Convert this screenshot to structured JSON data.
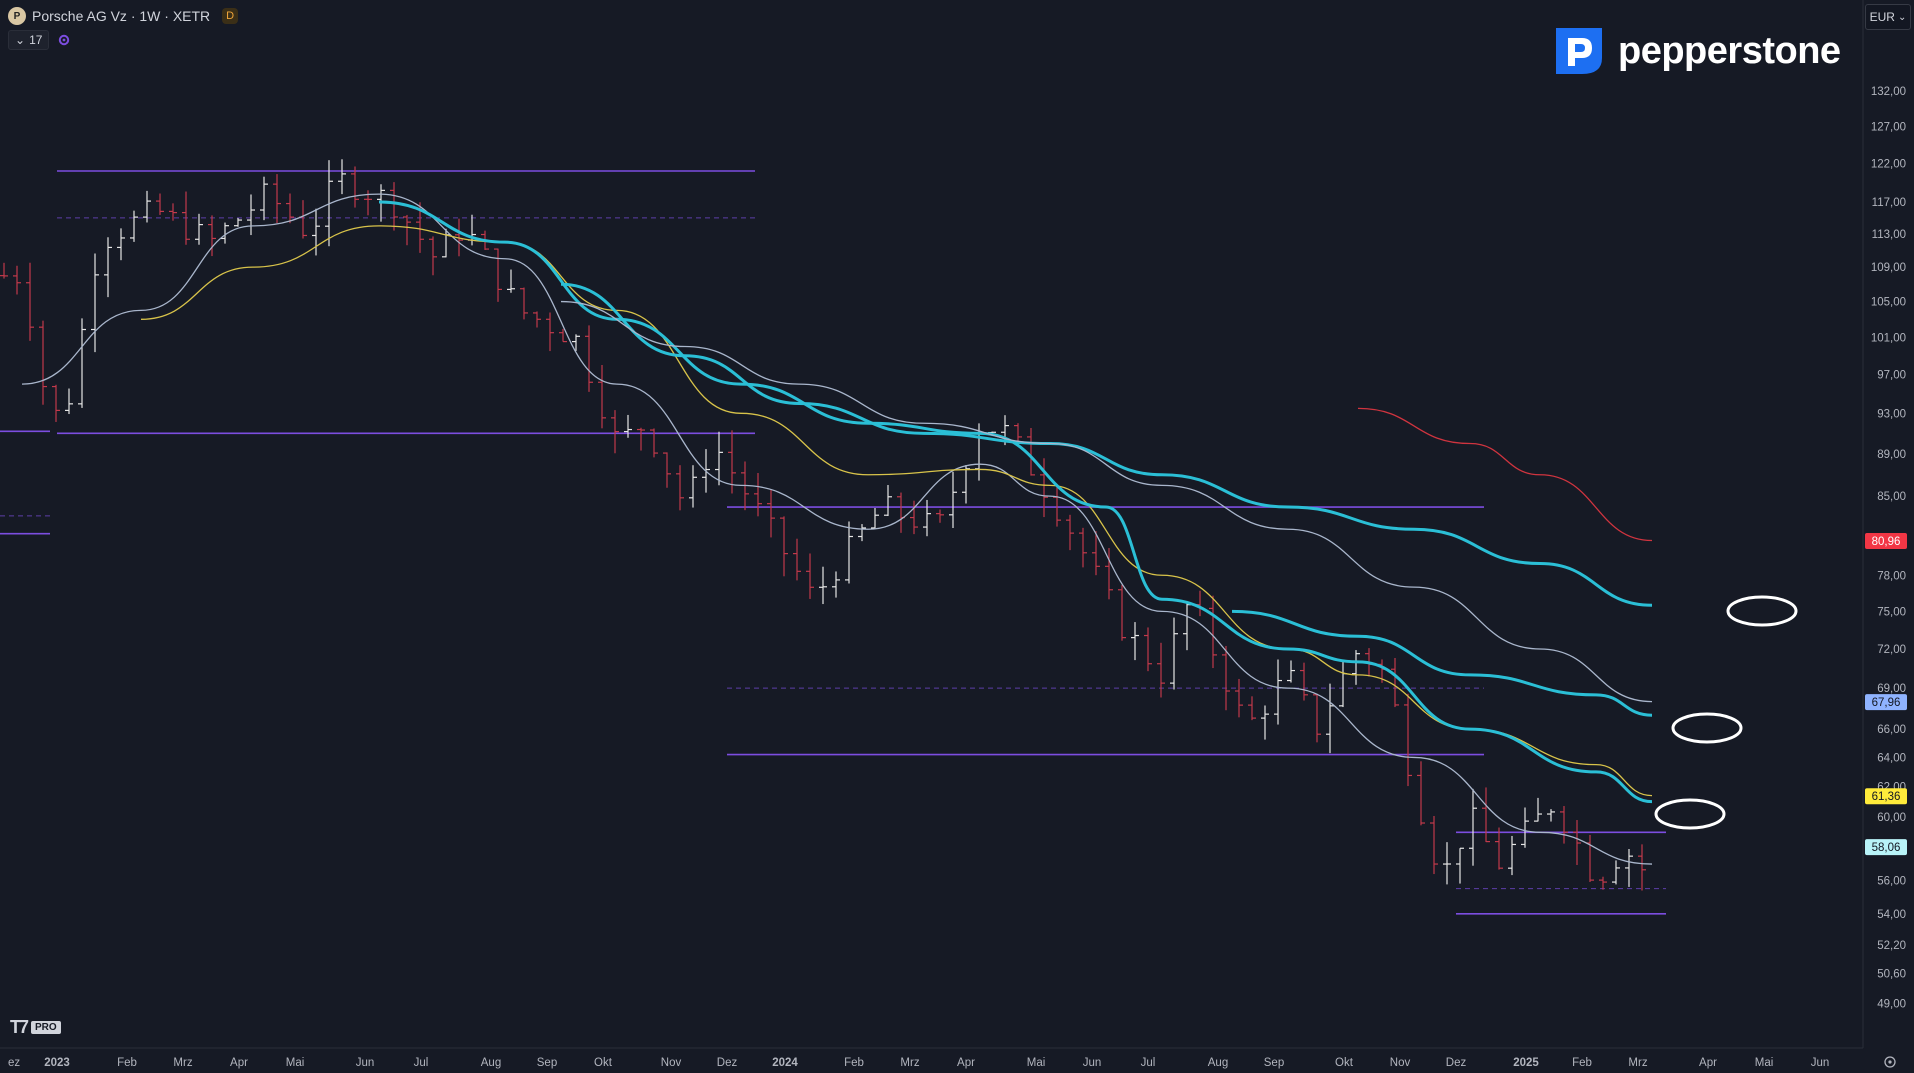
{
  "header": {
    "title": "Porsche AG Vz · 1W · XETR",
    "badge": "D",
    "indicator_count": "17"
  },
  "logo_text": "pepperstone",
  "currency": "EUR",
  "colors": {
    "background": "#161a25",
    "up_candle": "#e6e6e6",
    "down_candle": "#c23a4b",
    "cyan_ma": "#2bbfd6",
    "yellow_ma": "#d8c34a",
    "grey_ma": "#a9b6cc",
    "red_ma": "#d0343f",
    "level_line": "#7c4de0",
    "label_red": "#f23645",
    "label_blue": "#8fb3ff",
    "label_yellow": "#ffeb3b",
    "label_cyan": "#b8f3f8"
  },
  "chart_data": {
    "type": "candlestick",
    "y_scale": "log",
    "ylim": [
      47.6,
      139.5
    ],
    "y_ticks": [
      "132,00",
      "127,00",
      "122,00",
      "117,00",
      "113,00",
      "109,00",
      "105,00",
      "101,00",
      "97,00",
      "93,00",
      "89,00",
      "85,00",
      "78,00",
      "75,00",
      "72,00",
      "69,00",
      "66,00",
      "64,00",
      "62,00",
      "60,00",
      "56,00",
      "54,00",
      "52,20",
      "50,60",
      "49,00"
    ],
    "x_ticks": [
      "ez",
      "2023",
      "Feb",
      "Mrz",
      "Apr",
      "Mai",
      "Jun",
      "Jul",
      "Aug",
      "Sep",
      "Okt",
      "Nov",
      "Dez",
      "2024",
      "Feb",
      "Mrz",
      "Apr",
      "Mai",
      "Jun",
      "Jul",
      "Aug",
      "Sep",
      "Okt",
      "Nov",
      "Dez",
      "2025",
      "Feb",
      "Mrz",
      "Apr",
      "Mai",
      "Jun"
    ],
    "price_labels": [
      {
        "value": "80,96",
        "color": "label_red"
      },
      {
        "value": "67,96",
        "color": "label_blue"
      },
      {
        "value": "61,36",
        "color": "label_yellow"
      },
      {
        "value": "58,06",
        "color": "label_cyan"
      }
    ],
    "key_points": [
      {
        "date": "2022-12",
        "price": 108
      },
      {
        "date": "2022-12",
        "price": 92
      },
      {
        "date": "2023-01",
        "price": 95
      },
      {
        "date": "2023-01",
        "price": 112
      },
      {
        "date": "2023-02",
        "price": 116
      },
      {
        "date": "2023-03",
        "price": 112
      },
      {
        "date": "2023-04",
        "price": 118
      },
      {
        "date": "2023-05",
        "price": 113
      },
      {
        "date": "2023-05",
        "price": 120
      },
      {
        "date": "2023-06",
        "price": 117
      },
      {
        "date": "2023-07",
        "price": 110
      },
      {
        "date": "2023-07",
        "price": 114
      },
      {
        "date": "2023-08",
        "price": 104
      },
      {
        "date": "2023-09",
        "price": 101
      },
      {
        "date": "2023-10",
        "price": 90
      },
      {
        "date": "2023-10",
        "price": 92
      },
      {
        "date": "2023-11",
        "price": 84
      },
      {
        "date": "2023-11",
        "price": 90
      },
      {
        "date": "2023-12",
        "price": 84
      },
      {
        "date": "2024-01",
        "price": 76
      },
      {
        "date": "2024-02",
        "price": 84
      },
      {
        "date": "2024-03",
        "price": 82
      },
      {
        "date": "2024-04",
        "price": 92
      },
      {
        "date": "2024-04",
        "price": 91
      },
      {
        "date": "2024-05",
        "price": 83
      },
      {
        "date": "2024-06",
        "price": 74
      },
      {
        "date": "2024-07",
        "price": 70
      },
      {
        "date": "2024-07",
        "price": 76
      },
      {
        "date": "2024-08",
        "price": 66
      },
      {
        "date": "2024-09",
        "price": 70
      },
      {
        "date": "2024-09",
        "price": 66
      },
      {
        "date": "2024-10",
        "price": 72
      },
      {
        "date": "2024-10",
        "price": 70
      },
      {
        "date": "2024-11",
        "price": 62
      },
      {
        "date": "2024-11",
        "price": 56
      },
      {
        "date": "2024-12",
        "price": 60
      },
      {
        "date": "2024-12",
        "price": 57
      },
      {
        "date": "2025-01",
        "price": 61
      },
      {
        "date": "2025-02",
        "price": 56
      },
      {
        "date": "2025-02",
        "price": 58
      },
      {
        "date": "2025-03",
        "price": 55
      }
    ],
    "moving_averages": [
      {
        "color": "grey_ma",
        "points": [
          [
            "2022-12",
            96
          ],
          [
            "2023-02",
            104
          ],
          [
            "2023-04",
            114
          ],
          [
            "2023-06",
            118
          ],
          [
            "2023-08",
            110
          ],
          [
            "2023-10",
            96
          ],
          [
            "2023-12",
            86
          ],
          [
            "2024-02",
            82
          ],
          [
            "2024-04",
            88
          ],
          [
            "2024-05",
            85
          ],
          [
            "2024-07",
            75
          ],
          [
            "2024-09",
            69
          ],
          [
            "2024-11",
            64
          ],
          [
            "2025-01",
            59
          ],
          [
            "2025-03",
            57
          ]
        ]
      },
      {
        "color": "yellow_ma",
        "points": [
          [
            "2023-02",
            103
          ],
          [
            "2023-04",
            109
          ],
          [
            "2023-06",
            114
          ],
          [
            "2023-08",
            112
          ],
          [
            "2023-10",
            104
          ],
          [
            "2023-12",
            93
          ],
          [
            "2024-02",
            87
          ],
          [
            "2024-04",
            87.5
          ],
          [
            "2024-05",
            86
          ],
          [
            "2024-07",
            78
          ],
          [
            "2024-09",
            72
          ],
          [
            "2024-10",
            70
          ],
          [
            "2024-12",
            66
          ],
          [
            "2025-02",
            63.5
          ],
          [
            "2025-03",
            61.4
          ]
        ]
      },
      {
        "color": "cyan_ma",
        "points": [
          [
            "2023-06",
            117
          ],
          [
            "2023-08",
            112
          ],
          [
            "2023-10",
            103
          ],
          [
            "2023-12",
            96
          ],
          [
            "2024-02",
            92
          ],
          [
            "2024-04",
            91
          ],
          [
            "2024-06",
            84
          ],
          [
            "2024-07",
            76
          ],
          [
            "2024-09",
            72
          ],
          [
            "2024-10",
            71
          ],
          [
            "2024-12",
            66
          ],
          [
            "2025-02",
            63
          ],
          [
            "2025-03",
            61
          ]
        ]
      },
      {
        "color": "cyan_ma",
        "points": [
          [
            "2023-09",
            107
          ],
          [
            "2023-11",
            99
          ],
          [
            "2024-01",
            94
          ],
          [
            "2024-03",
            91
          ],
          [
            "2024-05",
            90
          ],
          [
            "2024-07",
            87
          ],
          [
            "2024-09",
            84
          ],
          [
            "2024-11",
            82
          ],
          [
            "2025-01",
            79
          ],
          [
            "2025-03",
            75.5
          ]
        ]
      },
      {
        "color": "grey_ma",
        "points": [
          [
            "2023-09",
            105
          ],
          [
            "2023-11",
            100
          ],
          [
            "2024-01",
            96
          ],
          [
            "2024-03",
            92
          ],
          [
            "2024-05",
            90
          ],
          [
            "2024-07",
            86
          ],
          [
            "2024-09",
            82
          ],
          [
            "2024-11",
            77
          ],
          [
            "2025-01",
            72
          ],
          [
            "2025-03",
            68
          ]
        ]
      },
      {
        "color": "cyan_ma",
        "points": [
          [
            "2024-08",
            75
          ],
          [
            "2024-10",
            73
          ],
          [
            "2024-12",
            70
          ],
          [
            "2025-02",
            68.5
          ],
          [
            "2025-03",
            67
          ]
        ]
      },
      {
        "color": "red_ma",
        "points": [
          [
            "2024-10",
            93.5
          ],
          [
            "2024-12",
            90
          ],
          [
            "2025-01",
            87
          ],
          [
            "2025-03",
            81
          ]
        ]
      }
    ],
    "level_lines": [
      {
        "price": 121,
        "from": "2023-01",
        "to": "2023-12",
        "style": "solid"
      },
      {
        "price": 115,
        "from": "2023-01",
        "to": "2023-12",
        "style": "dashed"
      },
      {
        "price": 91,
        "from": "2023-01",
        "to": "2023-12",
        "style": "solid"
      },
      {
        "price": 84,
        "from": "2023-12",
        "to": "2024-12",
        "style": "solid"
      },
      {
        "price": 69,
        "from": "2023-12",
        "to": "2024-12",
        "style": "dashed"
      },
      {
        "price": 64.2,
        "from": "2023-12",
        "to": "2024-12",
        "style": "solid"
      },
      {
        "price": 59,
        "from": "2024-12",
        "to": "2025-03",
        "style": "solid"
      },
      {
        "price": 55.5,
        "from": "2024-12",
        "to": "2025-03",
        "style": "dashed"
      },
      {
        "price": 54,
        "from": "2024-12",
        "to": "2025-03",
        "style": "solid"
      }
    ],
    "grid": false,
    "legend": "none"
  }
}
